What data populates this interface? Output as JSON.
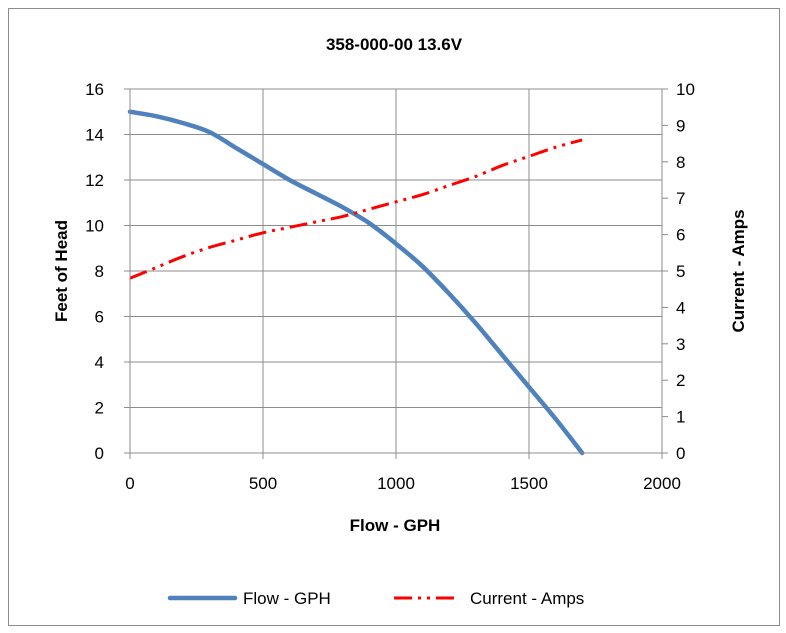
{
  "chart_data": {
    "type": "line",
    "title": "358-000-00 13.6V",
    "xlabel": "Flow - GPH",
    "ylabel": "Feet of Head",
    "y2label": "Current - Amps",
    "xlim": [
      0,
      2000
    ],
    "ylim": [
      0,
      16
    ],
    "y2lim": [
      0,
      10
    ],
    "x_ticks": [
      "0",
      "500",
      "1000",
      "1500",
      "2000"
    ],
    "y_ticks": [
      "0",
      "2",
      "4",
      "6",
      "8",
      "10",
      "12",
      "14",
      "16"
    ],
    "y2_ticks": [
      "0",
      "1",
      "2",
      "3",
      "4",
      "5",
      "6",
      "7",
      "8",
      "9",
      "10"
    ],
    "grid": true,
    "legend_position": "bottom",
    "series": [
      {
        "name": "Flow - GPH",
        "axis": "left",
        "color": "#4f81bd",
        "style": "solid",
        "x": [
          0,
          100,
          200,
          300,
          400,
          500,
          600,
          700,
          800,
          900,
          1000,
          1100,
          1200,
          1300,
          1400,
          1500,
          1600,
          1700
        ],
        "y": [
          15.0,
          14.8,
          14.5,
          14.1,
          13.4,
          12.7,
          12.0,
          11.4,
          10.8,
          10.1,
          9.2,
          8.2,
          7.0,
          5.7,
          4.3,
          2.9,
          1.5,
          0.0
        ]
      },
      {
        "name": "Current - Amps",
        "axis": "right",
        "color": "#ff0000",
        "style": "dash-dot-dot",
        "x": [
          0,
          100,
          200,
          300,
          400,
          500,
          600,
          700,
          800,
          900,
          1000,
          1100,
          1200,
          1300,
          1400,
          1500,
          1600,
          1700
        ],
        "y": [
          4.8,
          5.1,
          5.4,
          5.65,
          5.85,
          6.05,
          6.2,
          6.35,
          6.5,
          6.7,
          6.9,
          7.1,
          7.35,
          7.6,
          7.9,
          8.15,
          8.4,
          8.6
        ]
      }
    ]
  }
}
